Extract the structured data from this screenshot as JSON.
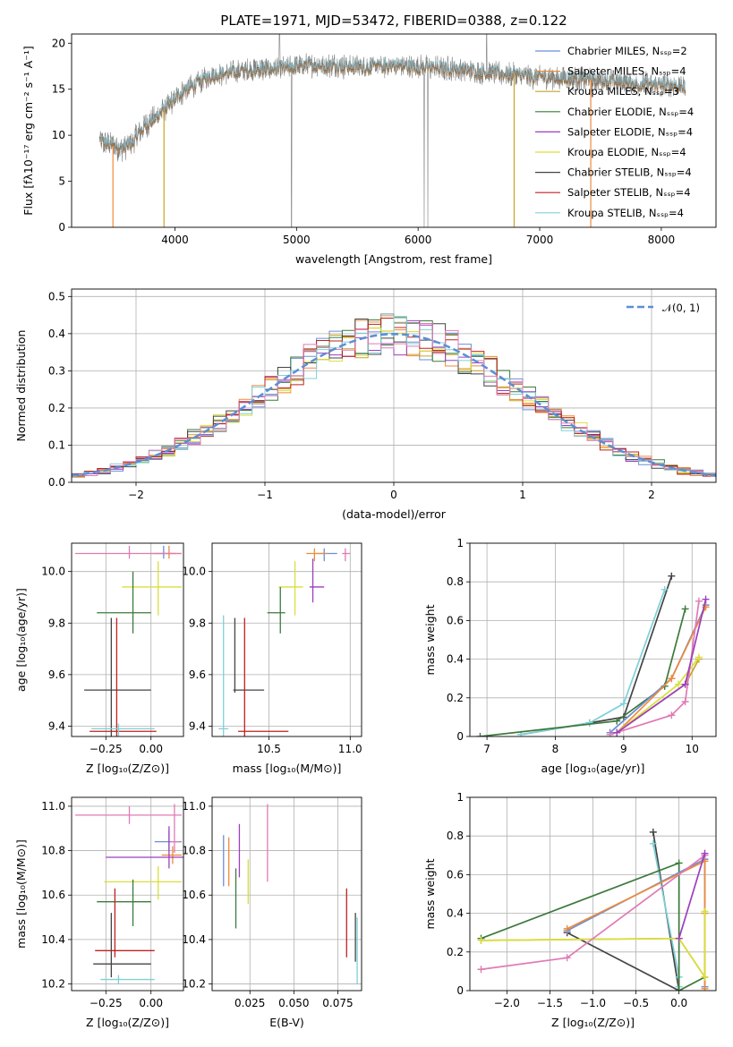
{
  "figure": {
    "title": "PLATE=1971, MJD=53472, FIBERID=0388, z=0.122"
  },
  "chart_data": [
    {
      "id": "spectrum",
      "type": "line",
      "xlabel": "wavelength [Angstrom, rest frame]",
      "ylabel": "Flux [fλ10⁻¹⁷ erg cm⁻² s⁻¹ A⁻¹]",
      "xlim": [
        3150,
        8450
      ],
      "ylim": [
        0,
        21
      ],
      "xticks": [
        4000,
        5000,
        6000,
        7000,
        8000
      ],
      "yticks": [
        0,
        5,
        10,
        15,
        20
      ],
      "grid": false,
      "legend": "top-right",
      "continuum_x": [
        3380,
        3450,
        3550,
        3650,
        3750,
        3850,
        3950,
        4050,
        4150,
        4300,
        4500,
        4700,
        4900,
        5100,
        5300,
        5500,
        5800,
        6000,
        6300,
        6600,
        6900,
        7200,
        7500,
        7800,
        8100,
        8200
      ],
      "continuum_y": [
        9.5,
        9.0,
        8.6,
        9.2,
        11.0,
        12.0,
        13.3,
        14.6,
        15.4,
        16.5,
        16.9,
        17.1,
        17.3,
        17.6,
        17.6,
        17.4,
        17.6,
        17.4,
        17.2,
        16.8,
        16.4,
        16.2,
        16.0,
        15.6,
        15.4,
        15.3
      ],
      "series": [
        {
          "name": "Chabrier MILES, Nₛₛₚ=2",
          "color": "#6a8fd6"
        },
        {
          "name": "Salpeter MILES, Nₛₛₚ=4",
          "color": "#ee8a3a"
        },
        {
          "name": "Kroupa MILES, Nₛₛₚ=3",
          "color": "#c9a227"
        },
        {
          "name": "Chabrier ELODIE, Nₛₛₚ=4",
          "color": "#3c7a3c"
        },
        {
          "name": "Salpeter ELODIE, Nₛₛₚ=4",
          "color": "#9c3fbf"
        },
        {
          "name": "Kroupa ELODIE, Nₛₛₚ=4",
          "color": "#d9df3c"
        },
        {
          "name": "Chabrier STELIB, Nₛₛₚ=4",
          "color": "#444444"
        },
        {
          "name": "Salpeter STELIB, Nₛₛₚ=4",
          "color": "#c02020"
        },
        {
          "name": "Kroupa STELIB, Nₛₛₚ=4",
          "color": "#7fd0d8"
        }
      ]
    },
    {
      "id": "residuals",
      "type": "line",
      "xlabel": "(data-model)/error",
      "ylabel": "Normed distribution",
      "xlim": [
        -2.5,
        2.5
      ],
      "ylim": [
        0,
        0.52
      ],
      "xticks": [
        -2,
        -1,
        0,
        1,
        2
      ],
      "yticks": [
        0.0,
        0.1,
        0.2,
        0.3,
        0.4,
        0.5
      ],
      "grid": true,
      "legend": "top-right",
      "legend_label": "𝒩(0, 1)",
      "bin_edges_step": 0.1,
      "bin_start": -2.5,
      "base_values": [
        0.02,
        0.023,
        0.027,
        0.031,
        0.034,
        0.04,
        0.045,
        0.051,
        0.058,
        0.067,
        0.079,
        0.09,
        0.104,
        0.116,
        0.132,
        0.15,
        0.163,
        0.182,
        0.2,
        0.215,
        0.236,
        0.253,
        0.275,
        0.29,
        0.31,
        0.33,
        0.345,
        0.36,
        0.375,
        0.385,
        0.392,
        0.396,
        0.4,
        0.398,
        0.395,
        0.39,
        0.382,
        0.374,
        0.366,
        0.356,
        0.348,
        0.336,
        0.32,
        0.3,
        0.28,
        0.262,
        0.242,
        0.22,
        0.2,
        0.18,
        0.16,
        0.145,
        0.128,
        0.112,
        0.098,
        0.085,
        0.073,
        0.063,
        0.055,
        0.048,
        0.042,
        0.037,
        0.032,
        0.028,
        0.025,
        0.022,
        0.02,
        0.018,
        0.017,
        0.016,
        0.015,
        0.014,
        0.013,
        0.012,
        0.011,
        0.01,
        0.01,
        0.009,
        0.009,
        0.008,
        0.008,
        0.007,
        0.007,
        0.006,
        0.006,
        0.006,
        0.005,
        0.005,
        0.005,
        0.004,
        0.004,
        0.004,
        0.004,
        0.003,
        0.003,
        0.003,
        0.003,
        0.002,
        0.002,
        0.002
      ],
      "series_colors": [
        "#6a8fd6",
        "#ee8a3a",
        "#c9a227",
        "#3c7a3c",
        "#9c3fbf",
        "#d9df3c",
        "#444444",
        "#c02020",
        "#7fd0d8",
        "#e07ab5"
      ]
    },
    {
      "id": "age-vs-Z",
      "type": "scatter",
      "xlabel": "Z [log₁₀(Z/Z⊙)]",
      "ylabel": "age [log₁₀(age/yr)]",
      "xlim": [
        -0.44,
        0.18
      ],
      "ylim": [
        9.36,
        10.11
      ],
      "xticks": [
        -0.25,
        0.0
      ],
      "xticklabels": [
        "−0.25",
        "0.00"
      ],
      "yticks": [
        9.4,
        9.6,
        9.8,
        10.0
      ],
      "yticklabels": [
        "9.4",
        "9.6",
        "9.8",
        "10.0"
      ],
      "grid": true,
      "points": [
        {
          "x": 0.07,
          "y": 10.07,
          "xerr": [
            0.07,
            0.07
          ],
          "yerr": [
            0.02,
            0.03
          ],
          "color": "#6a8fd6"
        },
        {
          "x": 0.1,
          "y": 10.07,
          "xerr": [
            0.08,
            0.07
          ],
          "yerr": [
            0.02,
            0.03
          ],
          "color": "#ee8a3a"
        },
        {
          "x": -0.12,
          "y": 10.07,
          "xerr": [
            0.3,
            0.29
          ],
          "yerr": [
            0.02,
            0.03
          ],
          "color": "#e07ab5"
        },
        {
          "x": 0.04,
          "y": 9.94,
          "xerr": [
            0.2,
            0.13
          ],
          "yerr": [
            0.11,
            0.1
          ],
          "color": "#d9df3c"
        },
        {
          "x": -0.1,
          "y": 9.84,
          "xerr": [
            0.2,
            0.1
          ],
          "yerr": [
            0.08,
            0.16
          ],
          "color": "#3c7a3c"
        },
        {
          "x": -0.22,
          "y": 9.54,
          "xerr": [
            0.15,
            0.22
          ],
          "yerr": [
            0.31,
            0.28
          ],
          "color": "#444444"
        },
        {
          "x": -0.19,
          "y": 9.38,
          "xerr": [
            0.15,
            0.22
          ],
          "yerr": [
            0.05,
            0.44
          ],
          "color": "#c02020"
        },
        {
          "x": -0.18,
          "y": 9.39,
          "xerr": [
            0.15,
            0.2
          ],
          "yerr": [
            0.03,
            0.02
          ],
          "color": "#7fd0d8"
        }
      ]
    },
    {
      "id": "age-vs-mass",
      "type": "scatter",
      "xlabel": "mass [log₁₀(M/M⊙)]",
      "ylabel": "",
      "xlim": [
        10.15,
        11.07
      ],
      "ylim": [
        9.36,
        10.11
      ],
      "xticks": [
        10.5,
        11.0
      ],
      "xticklabels": [
        "10.5",
        "11.0"
      ],
      "yticks": [
        9.4,
        9.6,
        9.8,
        10.0
      ],
      "yticklabels": [
        "9.4",
        "9.6",
        "9.8",
        "10.0"
      ],
      "grid": true,
      "points": [
        {
          "x": 10.84,
          "y": 10.07,
          "xerr": [
            0.05,
            0.08
          ],
          "yerr": [
            0.03,
            0.02
          ],
          "color": "#6a8fd6"
        },
        {
          "x": 10.78,
          "y": 10.07,
          "xerr": [
            0.05,
            0.08
          ],
          "yerr": [
            0.03,
            0.02
          ],
          "color": "#ee8a3a"
        },
        {
          "x": 10.97,
          "y": 10.07,
          "xerr": [
            0.02,
            0.03
          ],
          "yerr": [
            0.03,
            0.02
          ],
          "color": "#e07ab5"
        },
        {
          "x": 10.66,
          "y": 9.94,
          "xerr": [
            0.1,
            0.05
          ],
          "yerr": [
            0.11,
            0.1
          ],
          "color": "#d9df3c"
        },
        {
          "x": 10.57,
          "y": 9.84,
          "xerr": [
            0.08,
            0.03
          ],
          "yerr": [
            0.08,
            0.1
          ],
          "color": "#3c7a3c"
        },
        {
          "x": 10.29,
          "y": 9.54,
          "xerr": [
            0.01,
            0.18
          ],
          "yerr": [
            0.01,
            0.28
          ],
          "color": "#444444"
        },
        {
          "x": 10.35,
          "y": 9.38,
          "xerr": [
            0.04,
            0.27
          ],
          "yerr": [
            0.02,
            0.44
          ],
          "color": "#c02020"
        },
        {
          "x": 10.22,
          "y": 9.39,
          "xerr": [
            0.03,
            0.03
          ],
          "yerr": [
            0.03,
            0.44
          ],
          "color": "#7fd0d8"
        },
        {
          "x": 10.77,
          "y": 9.94,
          "xerr": [
            0.02,
            0.07
          ],
          "yerr": [
            0.06,
            0.11
          ],
          "color": "#9c3fbf"
        }
      ]
    },
    {
      "id": "massweight-vs-age",
      "type": "line",
      "xlabel": "age [log₁₀(age/yr)]",
      "ylabel": "mass weight",
      "xlim": [
        6.75,
        10.35
      ],
      "ylim": [
        0,
        1.0
      ],
      "xticks": [
        7,
        8,
        9,
        10
      ],
      "yticks": [
        0.0,
        0.2,
        0.4,
        0.6,
        0.8,
        1.0
      ],
      "grid": true,
      "series": [
        {
          "color": "#444444",
          "x": [
            7.5,
            8.5,
            9.0,
            9.7
          ],
          "y": [
            0.01,
            0.07,
            0.1,
            0.83
          ]
        },
        {
          "color": "#7fd0d8",
          "x": [
            7.5,
            8.5,
            9.0,
            9.6
          ],
          "y": [
            0.01,
            0.07,
            0.17,
            0.76
          ]
        },
        {
          "color": "#3c7a3c",
          "x": [
            6.9,
            8.9,
            9.6,
            9.9
          ],
          "y": [
            0.0,
            0.08,
            0.26,
            0.66
          ]
        },
        {
          "color": "#6a8fd6",
          "x": [
            8.8,
            9.7,
            10.2
          ],
          "y": [
            0.02,
            0.3,
            0.68
          ]
        },
        {
          "color": "#ee8a3a",
          "x": [
            8.9,
            9.7,
            10.2
          ],
          "y": [
            0.02,
            0.3,
            0.67
          ]
        },
        {
          "color": "#c9a227",
          "x": [
            8.9,
            9.9,
            10.1
          ],
          "y": [
            0.02,
            0.27,
            0.4
          ]
        },
        {
          "color": "#d9df3c",
          "x": [
            8.9,
            9.8,
            10.1
          ],
          "y": [
            0.02,
            0.27,
            0.41
          ]
        },
        {
          "color": "#e07ab5",
          "x": [
            8.8,
            9.7,
            9.9,
            10.1
          ],
          "y": [
            0.01,
            0.11,
            0.18,
            0.7
          ]
        },
        {
          "color": "#9c3fbf",
          "x": [
            8.9,
            9.9,
            10.2
          ],
          "y": [
            0.02,
            0.27,
            0.71
          ]
        }
      ]
    },
    {
      "id": "mass-vs-Z",
      "type": "scatter",
      "xlabel": "Z [log₁₀(Z/Z⊙)]",
      "ylabel": "mass [log₁₀(M/M⊙)]",
      "xlim": [
        -0.44,
        0.18
      ],
      "ylim": [
        10.17,
        11.04
      ],
      "xticks": [
        -0.25,
        0.0
      ],
      "xticklabels": [
        "−0.25",
        "0.00"
      ],
      "yticks": [
        10.2,
        10.4,
        10.6,
        10.8,
        11.0
      ],
      "yticklabels": [
        "10.2",
        "10.4",
        "10.6",
        "10.8",
        "11.0"
      ],
      "grid": true,
      "points": [
        {
          "x": 0.1,
          "y": 10.84,
          "xerr": [
            0.08,
            0.07
          ],
          "yerr": [
            0.04,
            0.05
          ],
          "color": "#6a8fd6"
        },
        {
          "x": 0.12,
          "y": 10.78,
          "xerr": [
            0.06,
            0.05
          ],
          "yerr": [
            0.04,
            0.04
          ],
          "color": "#ee8a3a"
        },
        {
          "x": -0.12,
          "y": 10.96,
          "xerr": [
            0.3,
            0.29
          ],
          "yerr": [
            0.04,
            0.04
          ],
          "color": "#e07ab5"
        },
        {
          "x": 0.04,
          "y": 10.66,
          "xerr": [
            0.3,
            0.13
          ],
          "yerr": [
            0.08,
            0.07
          ],
          "color": "#d9df3c"
        },
        {
          "x": -0.1,
          "y": 10.57,
          "xerr": [
            0.2,
            0.1
          ],
          "yerr": [
            0.11,
            0.1
          ],
          "color": "#3c7a3c"
        },
        {
          "x": -0.22,
          "y": 10.29,
          "xerr": [
            0.1,
            0.22
          ],
          "yerr": [
            0.06,
            0.23
          ],
          "color": "#444444"
        },
        {
          "x": -0.2,
          "y": 10.35,
          "xerr": [
            0.11,
            0.22
          ],
          "yerr": [
            0.03,
            0.28
          ],
          "color": "#c02020"
        },
        {
          "x": -0.18,
          "y": 10.22,
          "xerr": [
            0.1,
            0.2
          ],
          "yerr": [
            0.02,
            0.02
          ],
          "color": "#7fd0d8"
        },
        {
          "x": 0.1,
          "y": 10.77,
          "xerr": [
            0.35,
            0.08
          ],
          "yerr": [
            0.05,
            0.14
          ],
          "color": "#9c3fbf"
        },
        {
          "x": 0.13,
          "y": 10.84,
          "xerr": [
            0.02,
            0.03
          ],
          "yerr": [
            0.05,
            0.17
          ],
          "color": "#e07ab5"
        }
      ]
    },
    {
      "id": "mass-vs-EBV",
      "type": "scatter",
      "xlabel": "E(B-V)",
      "ylabel": "",
      "xlim": [
        0.0035,
        0.0885
      ],
      "ylim": [
        10.17,
        11.04
      ],
      "xticks": [
        0.025,
        0.05,
        0.075
      ],
      "xticklabels": [
        "0.025",
        "0.050",
        "0.075"
      ],
      "yticks": [
        10.2,
        10.4,
        10.6,
        10.8,
        11.0
      ],
      "yticklabels": [
        "10.2",
        "10.4",
        "10.6",
        "10.8",
        "11.0"
      ],
      "grid": true,
      "points": [
        {
          "x": 0.01,
          "y": 10.75,
          "yerr": [
            0.11,
            0.12
          ],
          "color": "#6a8fd6"
        },
        {
          "x": 0.013,
          "y": 10.75,
          "yerr": [
            0.11,
            0.11
          ],
          "color": "#ee8a3a"
        },
        {
          "x": 0.017,
          "y": 10.6,
          "yerr": [
            0.15,
            0.12
          ],
          "color": "#3c7a3c"
        },
        {
          "x": 0.019,
          "y": 10.78,
          "yerr": [
            0.1,
            0.14
          ],
          "color": "#9c3fbf"
        },
        {
          "x": 0.024,
          "y": 10.66,
          "yerr": [
            0.1,
            0.1
          ],
          "color": "#d9df3c"
        },
        {
          "x": 0.035,
          "y": 10.8,
          "yerr": [
            0.14,
            0.21
          ],
          "color": "#e07ab5"
        },
        {
          "x": 0.08,
          "y": 10.47,
          "yerr": [
            0.15,
            0.16
          ],
          "color": "#c02020"
        },
        {
          "x": 0.085,
          "y": 10.42,
          "yerr": [
            0.12,
            0.1
          ],
          "color": "#444444"
        },
        {
          "x": 0.086,
          "y": 10.35,
          "yerr": [
            0.15,
            0.15
          ],
          "color": "#7fd0d8"
        }
      ]
    },
    {
      "id": "massweight-vs-Z",
      "type": "line",
      "xlabel": "Z [log₁₀(Z/Z⊙)]",
      "ylabel": "mass weight",
      "xlim": [
        -2.43,
        0.43
      ],
      "ylim": [
        0,
        1.0
      ],
      "xticks": [
        -2.0,
        -1.5,
        -1.0,
        -0.5,
        0.0
      ],
      "xticklabels": [
        "−2.0",
        "−1.5",
        "−1.0",
        "−0.5",
        "0.0"
      ],
      "yticks": [
        0.0,
        0.2,
        0.4,
        0.6,
        0.8,
        1.0
      ],
      "grid": true,
      "series": [
        {
          "color": "#444444",
          "x": [
            -0.3,
            0.0,
            -1.3
          ],
          "y": [
            0.82,
            0.0,
            0.3
          ]
        },
        {
          "color": "#7fd0d8",
          "x": [
            -0.3,
            0.0,
            0.0
          ],
          "y": [
            0.76,
            0.07,
            0.02
          ]
        },
        {
          "color": "#3c7a3c",
          "x": [
            -2.3,
            0.0,
            0.0,
            0.3
          ],
          "y": [
            0.27,
            0.66,
            0.0,
            0.07
          ]
        },
        {
          "color": "#6a8fd6",
          "x": [
            -1.3,
            0.3,
            0.3
          ],
          "y": [
            0.31,
            0.68,
            0.02
          ]
        },
        {
          "color": "#ee8a3a",
          "x": [
            -1.3,
            0.3,
            0.3
          ],
          "y": [
            0.32,
            0.67,
            0.01
          ]
        },
        {
          "color": "#c9a227",
          "x": [
            -2.3,
            0.0,
            0.3,
            0.3
          ],
          "y": [
            0.26,
            0.27,
            0.07,
            0.4
          ]
        },
        {
          "color": "#d9df3c",
          "x": [
            -2.3,
            0.0,
            0.3,
            0.3
          ],
          "y": [
            0.26,
            0.27,
            0.07,
            0.41
          ]
        },
        {
          "color": "#e07ab5",
          "x": [
            -2.3,
            -1.3,
            0.3
          ],
          "y": [
            0.11,
            0.17,
            0.7
          ]
        },
        {
          "color": "#9c3fbf",
          "x": [
            0.0,
            0.3
          ],
          "y": [
            0.27,
            0.71
          ]
        }
      ]
    }
  ]
}
